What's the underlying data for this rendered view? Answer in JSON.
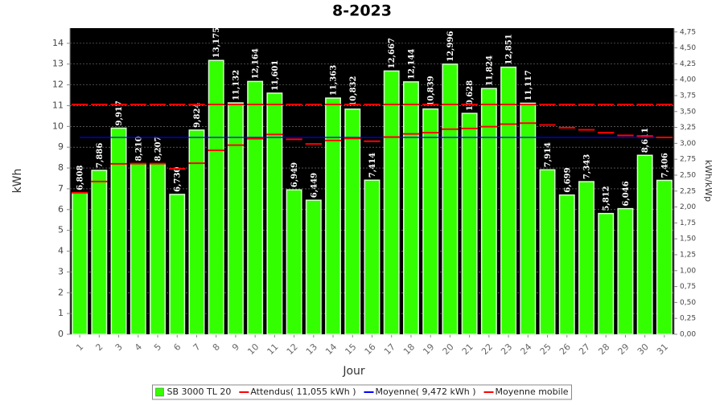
{
  "chart_data": {
    "type": "bar",
    "title": "8-2023",
    "x_label": "Jour",
    "y_label": "kWh",
    "y2_label": "kWh/kWp",
    "categories": [
      "1",
      "2",
      "3",
      "4",
      "5",
      "6",
      "7",
      "8",
      "9",
      "10",
      "11",
      "12",
      "13",
      "14",
      "15",
      "16",
      "17",
      "18",
      "19",
      "20",
      "21",
      "22",
      "23",
      "24",
      "25",
      "26",
      "27",
      "28",
      "29",
      "30",
      "31"
    ],
    "series": [
      {
        "name": "SB 3000 TL 20",
        "color": "#33ff00",
        "type": "bar",
        "values": [
          6.808,
          7.886,
          9.917,
          8.21,
          8.207,
          6.73,
          9.824,
          13.175,
          11.132,
          12.164,
          11.601,
          6.949,
          6.449,
          11.363,
          10.832,
          7.414,
          12.667,
          12.144,
          10.839,
          12.996,
          10.628,
          11.824,
          12.851,
          11.117,
          7.914,
          6.699,
          7.343,
          5.812,
          6.046,
          8.611,
          7.406
        ],
        "value_labels": [
          "6,808",
          "7,886",
          "9,917",
          "8,210",
          "8,207",
          "6,730",
          "9,824",
          "13,175",
          "11,132",
          "12,164",
          "11,601",
          "6,949",
          "6,449",
          "11,363",
          "10,832",
          "7,414",
          "12,667",
          "12,144",
          "10,839",
          "12,996",
          "10,628",
          "11,824",
          "12,851",
          "11,117",
          "7,914",
          "6,699",
          "7,343",
          "5,812",
          "6,046",
          "8,611",
          "7,406"
        ]
      },
      {
        "name": "Attendus( 11,055 kWh )",
        "color": "#ff0000",
        "type": "step",
        "values": [
          11.055,
          11.055,
          11.055,
          11.055,
          11.055,
          11.055,
          11.055,
          11.055,
          11.055,
          11.055,
          11.055,
          11.055,
          11.055,
          11.055,
          11.055,
          11.055,
          11.055,
          11.055,
          11.055,
          11.055,
          11.055,
          11.055,
          11.055,
          11.055,
          11.055,
          11.055,
          11.055,
          11.055,
          11.055,
          11.055,
          11.055
        ]
      },
      {
        "name": "Moyenne( 9,472 kWh )",
        "color": "#0000ff",
        "type": "line",
        "values": [
          9.472,
          9.472,
          9.472,
          9.472,
          9.472,
          9.472,
          9.472,
          9.472,
          9.472,
          9.472,
          9.472,
          9.472,
          9.472,
          9.472,
          9.472,
          9.472,
          9.472,
          9.472,
          9.472,
          9.472,
          9.472,
          9.472,
          9.472,
          9.472,
          9.472,
          9.472,
          9.472,
          9.472,
          9.472,
          9.472,
          9.472
        ]
      },
      {
        "name": "Moyenne mobile",
        "color": "#ff0000",
        "type": "step",
        "values": [
          6.81,
          7.35,
          8.2,
          8.21,
          8.21,
          7.96,
          8.23,
          8.85,
          9.1,
          9.41,
          9.61,
          9.38,
          9.16,
          9.32,
          9.42,
          9.29,
          9.49,
          9.64,
          9.7,
          9.87,
          9.9,
          9.99,
          10.11,
          10.16,
          10.07,
          9.94,
          9.84,
          9.7,
          9.57,
          9.54,
          9.47
        ]
      }
    ],
    "ylim": [
      0,
      14.73
    ],
    "yticks": [
      0,
      1,
      2,
      3,
      4,
      5,
      6,
      7,
      8,
      9,
      10,
      11,
      12,
      13,
      14
    ],
    "y2lim": [
      0,
      4.81
    ],
    "y2ticks": [
      {
        "value": 0,
        "label": "0,00"
      },
      {
        "value": 0.25,
        "label": "0,25"
      },
      {
        "value": 0.5,
        "label": "0,50"
      },
      {
        "value": 0.75,
        "label": "0,75"
      },
      {
        "value": 1,
        "label": "1,00"
      },
      {
        "value": 1.25,
        "label": "1,25"
      },
      {
        "value": 1.5,
        "label": "1,50"
      },
      {
        "value": 1.75,
        "label": "1,75"
      },
      {
        "value": 2,
        "label": "2,00"
      },
      {
        "value": 2.25,
        "label": "2,25"
      },
      {
        "value": 2.5,
        "label": "2,50"
      },
      {
        "value": 2.75,
        "label": "2,75"
      },
      {
        "value": 3,
        "label": "3,00"
      },
      {
        "value": 3.25,
        "label": "3,25"
      },
      {
        "value": 3.5,
        "label": "3,50"
      },
      {
        "value": 3.75,
        "label": "3,75"
      },
      {
        "value": 4,
        "label": "4,00"
      },
      {
        "value": 4.25,
        "label": "4,25"
      },
      {
        "value": 4.5,
        "label": "4,50"
      },
      {
        "value": 4.75,
        "label": "4,75"
      }
    ],
    "grid": true,
    "legend": "bottom"
  }
}
